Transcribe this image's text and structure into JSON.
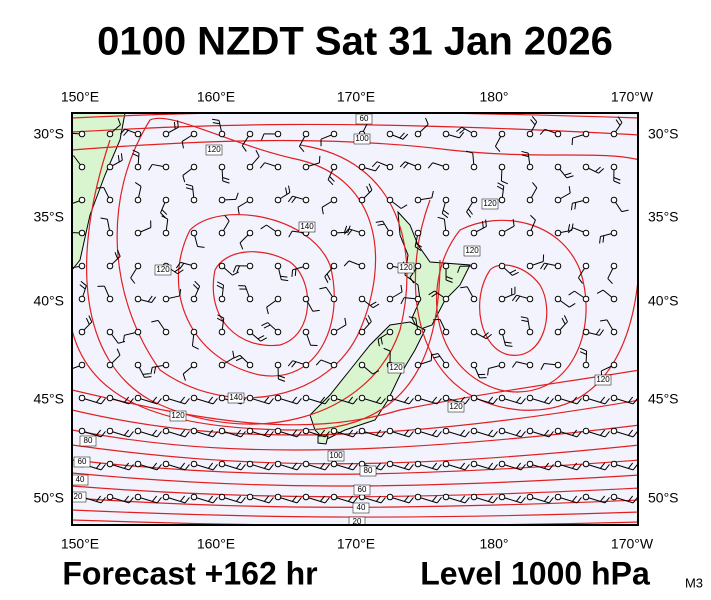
{
  "title": "0100 NZDT Sat 31 Jan 2026",
  "footer": {
    "forecast": "Forecast +162 hr",
    "level": "Level 1000 hPa",
    "model": "M3"
  },
  "map": {
    "lon_labels": [
      "150°E",
      "160°E",
      "170°E",
      "180°",
      "170°W"
    ],
    "lat_labels": [
      "30°S",
      "35°S",
      "40°S",
      "45°S",
      "50°S"
    ],
    "contour_labels": [
      60,
      100,
      120,
      120,
      140,
      120,
      120,
      120,
      140,
      120,
      120,
      120,
      120,
      100,
      80,
      60,
      40,
      20,
      80,
      60,
      40,
      20
    ]
  }
}
